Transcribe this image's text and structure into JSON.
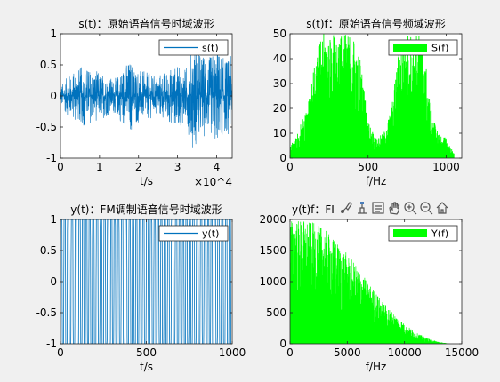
{
  "colors": {
    "blue": "#0072BD",
    "green": "#00FF00",
    "axes_bg": "#ffffff",
    "figure_bg": "#f0f0f0"
  },
  "toolbar": {
    "icons": [
      "brush-icon",
      "data-cursor-icon",
      "legend-icon",
      "pan-hand-icon",
      "zoom-in-icon",
      "zoom-out-icon",
      "home-icon"
    ]
  },
  "chart_data": [
    {
      "type": "line",
      "title": "s(t)：原始语音信号时域波形",
      "xlabel": "t/s",
      "ylabel": "",
      "xlim": [
        0,
        44000
      ],
      "ylim": [
        -1,
        1
      ],
      "x_ticks": [
        "0",
        "1",
        "2",
        "3",
        "4"
      ],
      "y_ticks": [
        "-1",
        "-0.5",
        "0",
        "0.5",
        "1"
      ],
      "x_exponent": "×10^4",
      "grid": false,
      "legend": {
        "position": "top-right",
        "entries": [
          "s(t)"
        ]
      },
      "envelope": {
        "x": [
          0,
          2000,
          4000,
          6000,
          8000,
          10000,
          12000,
          14000,
          16000,
          18000,
          20000,
          22000,
          24000,
          26000,
          28000,
          30000,
          32000,
          34000,
          36000,
          38000,
          40000,
          42000,
          44000
        ],
        "amplitude": [
          0.15,
          0.3,
          0.4,
          0.45,
          0.4,
          0.35,
          0.3,
          0.25,
          0.45,
          0.55,
          0.4,
          0.35,
          0.3,
          0.35,
          0.4,
          0.45,
          0.4,
          0.8,
          0.65,
          0.55,
          0.75,
          0.55,
          0.6
        ]
      }
    },
    {
      "type": "area",
      "title": "s(t)f：原始语音信号频域波形",
      "xlabel": "f/Hz",
      "ylabel": "",
      "xlim": [
        0,
        1100
      ],
      "ylim": [
        0,
        50
      ],
      "x_ticks": [
        "0",
        "500",
        "1000"
      ],
      "y_ticks": [
        "0",
        "10",
        "20",
        "30",
        "40",
        "50"
      ],
      "grid": false,
      "legend": {
        "position": "top-right",
        "entries": [
          "S(f)"
        ]
      },
      "envelope": {
        "x": [
          0,
          50,
          100,
          150,
          200,
          250,
          300,
          350,
          400,
          450,
          500,
          550,
          600,
          650,
          700,
          750,
          800,
          850,
          900,
          950,
          1000,
          1050
        ],
        "magnitude": [
          5,
          10,
          20,
          35,
          50,
          50,
          50,
          50,
          50,
          40,
          15,
          8,
          10,
          20,
          45,
          50,
          50,
          50,
          20,
          10,
          8,
          2
        ]
      }
    },
    {
      "type": "line",
      "title": "y(t)：FM调制语音信号时域波形",
      "xlabel": "t/s",
      "ylabel": "",
      "xlim": [
        0,
        1000
      ],
      "ylim": [
        -1,
        1
      ],
      "x_ticks": [
        "0",
        "500",
        "1000"
      ],
      "y_ticks": [
        "-1",
        "-0.5",
        "0",
        "0.5",
        "1"
      ],
      "grid": false,
      "legend": {
        "position": "top-right",
        "entries": [
          "y(t)"
        ]
      },
      "cycles": 48
    },
    {
      "type": "area",
      "title": "y(t)f：FI",
      "xlabel": "f/Hz",
      "ylabel": "",
      "xlim": [
        0,
        15000
      ],
      "ylim": [
        0,
        2000
      ],
      "x_ticks": [
        "0",
        "5000",
        "10000",
        "15000"
      ],
      "y_ticks": [
        "0",
        "500",
        "1000",
        "1500",
        "2000"
      ],
      "grid": false,
      "legend": {
        "position": "top-right",
        "entries": [
          "Y(f)"
        ]
      },
      "envelope": {
        "x": [
          0,
          1000,
          2000,
          3000,
          4000,
          5000,
          6000,
          7000,
          8000,
          9000,
          10000,
          11000,
          12000,
          13000,
          14000
        ],
        "magnitude": [
          2000,
          2000,
          1950,
          1850,
          1650,
          1450,
          1200,
          950,
          700,
          500,
          320,
          180,
          90,
          30,
          0
        ]
      }
    }
  ]
}
